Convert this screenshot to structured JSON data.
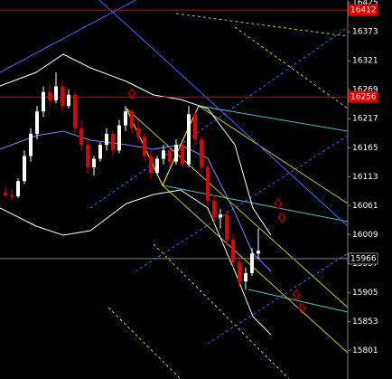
{
  "chart_data": {
    "type": "candlestick",
    "ylim": [
      15750,
      16430
    ],
    "yticks": [
      16425,
      16373,
      16321,
      16269,
      16217,
      16165,
      16113,
      16061,
      16009,
      15957,
      15905,
      15853,
      15801
    ],
    "up_color": "#ffffff",
    "down_color": "#e00000",
    "candles": [
      [
        16085,
        16095,
        16075,
        16080
      ],
      [
        16080,
        16090,
        16070,
        16078
      ],
      [
        16078,
        16110,
        16075,
        16105
      ],
      [
        16105,
        16160,
        16100,
        16150
      ],
      [
        16150,
        16200,
        16140,
        16190
      ],
      [
        16190,
        16240,
        16180,
        16230
      ],
      [
        16230,
        16275,
        16220,
        16265
      ],
      [
        16265,
        16280,
        16240,
        16250
      ],
      [
        16250,
        16300,
        16245,
        16275
      ],
      [
        16275,
        16285,
        16230,
        16240
      ],
      [
        16240,
        16270,
        16235,
        16260
      ],
      [
        16260,
        16265,
        16190,
        16200
      ],
      [
        16200,
        16215,
        16160,
        16170
      ],
      [
        16170,
        16180,
        16120,
        16130
      ],
      [
        16130,
        16150,
        16115,
        16145
      ],
      [
        16145,
        16175,
        16140,
        16170
      ],
      [
        16170,
        16200,
        16160,
        16190
      ],
      [
        16190,
        16195,
        16150,
        16160
      ],
      [
        16160,
        16215,
        16155,
        16205
      ],
      [
        16205,
        16240,
        16195,
        16230
      ],
      [
        16230,
        16235,
        16190,
        16200
      ],
      [
        16200,
        16215,
        16175,
        16185
      ],
      [
        16185,
        16190,
        16140,
        16150
      ],
      [
        16150,
        16160,
        16110,
        16120
      ],
      [
        16120,
        16150,
        16115,
        16145
      ],
      [
        16145,
        16170,
        16135,
        16160
      ],
      [
        16160,
        16165,
        16130,
        16140
      ],
      [
        16140,
        16180,
        16135,
        16170
      ],
      [
        16170,
        16175,
        16130,
        16135
      ],
      [
        16135,
        16240,
        16130,
        16225
      ],
      [
        16225,
        16230,
        16170,
        16180
      ],
      [
        16180,
        16185,
        16120,
        16130
      ],
      [
        16130,
        16140,
        16060,
        16070
      ],
      [
        16070,
        16080,
        16030,
        16040
      ],
      [
        16040,
        16055,
        16020,
        16045
      ],
      [
        16045,
        16050,
        15990,
        16000
      ],
      [
        16000,
        16010,
        15950,
        15960
      ],
      [
        15960,
        15970,
        15915,
        15925
      ],
      [
        15925,
        15950,
        15910,
        15940
      ],
      [
        15940,
        15985,
        15935,
        15975
      ],
      [
        15975,
        16020,
        15965,
        15980
      ]
    ],
    "levels": [
      {
        "value": 16412,
        "color": "#e00000"
      },
      {
        "value": 16256,
        "color": "#e00000"
      },
      {
        "value": 15966,
        "color": "#808080"
      }
    ]
  }
}
